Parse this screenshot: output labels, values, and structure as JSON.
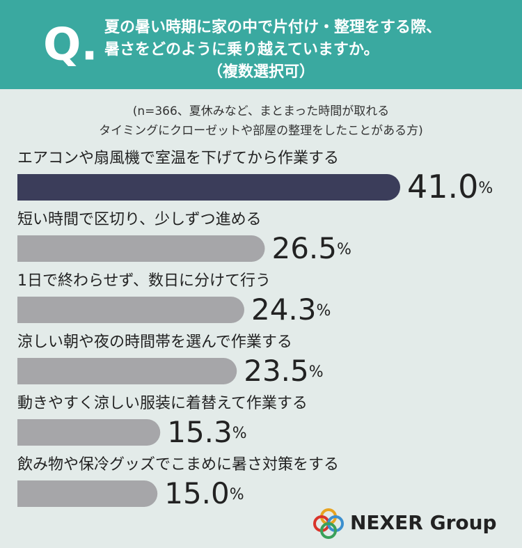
{
  "chart_data": {
    "type": "bar",
    "orientation": "horizontal",
    "badge": "Q.",
    "title": [
      "夏の暑い時期に家の中で片付け・整理をする際、",
      "暑さをどのように乗り越えていますか。",
      "（複数選択可）"
    ],
    "subtitle": [
      "(n=366、夏休みなど、まとまった時間が取れる",
      "タイミングにクローゼットや部屋の整理をしたことがある方)"
    ],
    "categories": [
      "エアコンや扇風機で室温を下げてから作業する",
      "短い時間で区切り、少しずつ進める",
      "1日で終わらせず、数日に分けて行う",
      "涼しい朝や夜の時間帯を選んで作業する",
      "動きやすく涼しい服装に着替えて作業する",
      "飲み物や保冷グッズでこまめに暑さ対策をする"
    ],
    "values": [
      41.0,
      26.5,
      24.3,
      23.5,
      15.3,
      15.0
    ],
    "value_labels": [
      "41.0%",
      "26.5%",
      "24.3%",
      "23.5%",
      "15.3%",
      "15.0%"
    ],
    "colors": [
      "#3b3d5a",
      "#a6a6a9",
      "#a6a6a9",
      "#a6a6a9",
      "#a6a6a9",
      "#a6a6a9"
    ],
    "source": "NEXER Group"
  }
}
